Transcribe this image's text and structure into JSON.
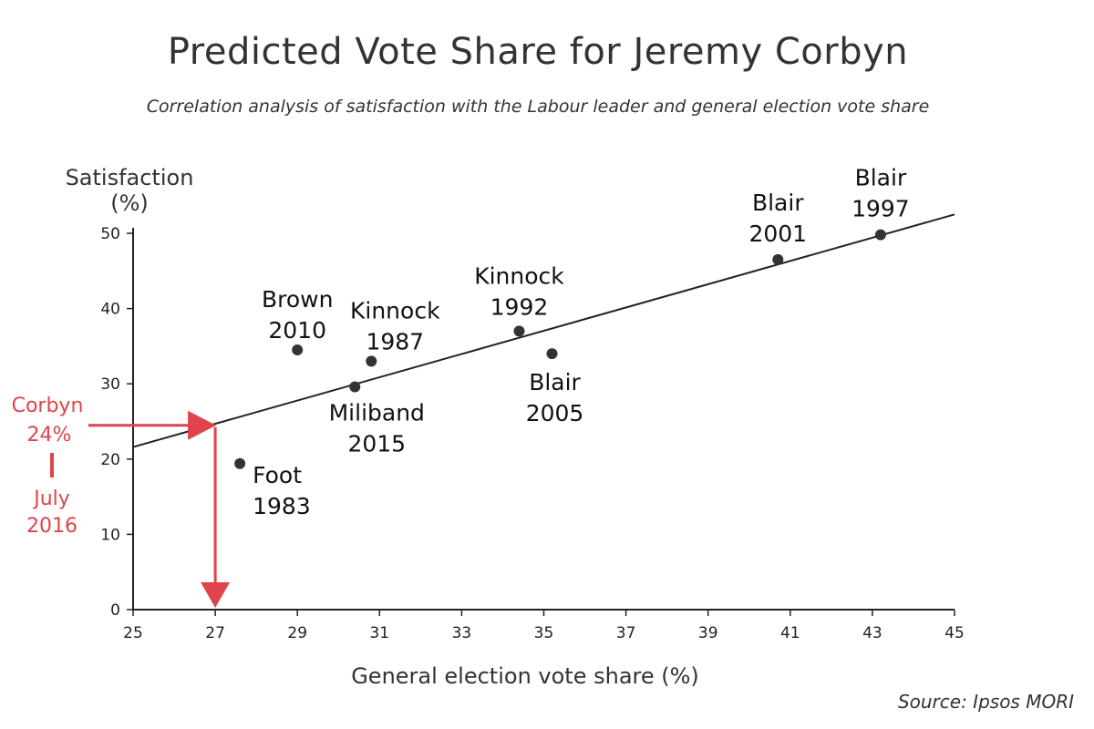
{
  "chart_data": {
    "type": "scatter",
    "title": "Predicted Vote Share for Jeremy Corbyn",
    "subtitle": "Correlation analysis of satisfaction with the Labour leader and general election vote share",
    "xlabel": "General election vote share (%)",
    "ylabel": [
      "Satisfaction",
      "(%)"
    ],
    "xlim": [
      25,
      45
    ],
    "ylim": [
      0,
      50
    ],
    "x_ticks": [
      25,
      27,
      29,
      31,
      33,
      35,
      37,
      39,
      41,
      43,
      45
    ],
    "y_ticks": [
      0,
      10,
      20,
      30,
      40,
      50
    ],
    "grid": false,
    "legend": "none",
    "points": [
      {
        "label": [
          "Blair",
          "1997"
        ],
        "x": 43.2,
        "y": 49.8
      },
      {
        "label": [
          "Blair",
          "2001"
        ],
        "x": 40.7,
        "y": 46.5
      },
      {
        "label": [
          "Kinnock",
          "1992"
        ],
        "x": 34.4,
        "y": 37.0
      },
      {
        "label": [
          "Blair",
          "2005"
        ],
        "x": 35.2,
        "y": 34.0
      },
      {
        "label": [
          "Brown",
          "2010"
        ],
        "x": 29.0,
        "y": 34.5
      },
      {
        "label": [
          "Kinnock",
          "1987"
        ],
        "x": 30.8,
        "y": 33.0
      },
      {
        "label": [
          "Miliband",
          "2015"
        ],
        "x": 30.4,
        "y": 29.6
      },
      {
        "label": [
          "Foot",
          "1983"
        ],
        "x": 27.6,
        "y": 19.4
      }
    ],
    "trendline": {
      "x": [
        25,
        45
      ],
      "y": [
        21.6,
        52.5
      ]
    },
    "annotation": {
      "text": [
        "Corbyn",
        "24%",
        "July",
        "2016"
      ],
      "satisfaction": 24,
      "predicted_vote_share": 27,
      "color": "#e0434b"
    }
  },
  "source": "Source: Ipsos MORI",
  "colors": {
    "point": "#333333",
    "line": "#222222",
    "axis": "#222222",
    "highlight": "#e0434b"
  }
}
